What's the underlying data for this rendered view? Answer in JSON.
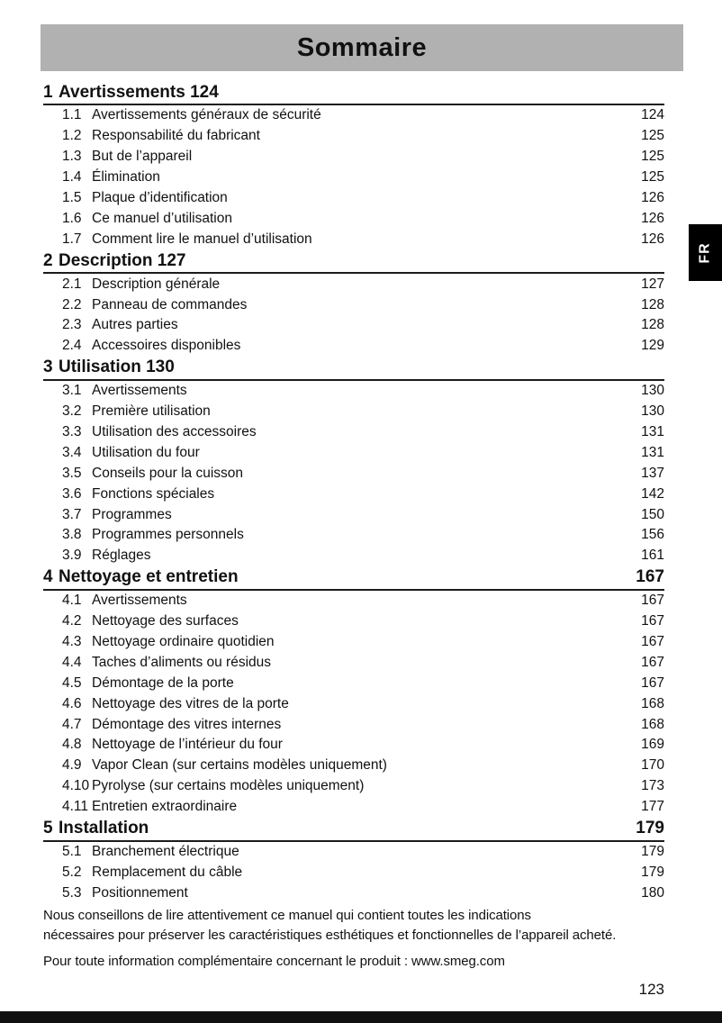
{
  "page": {
    "title": "Sommaire",
    "language_tab": "FR",
    "page_number": "123"
  },
  "toc": {
    "sections": [
      {
        "number": "1",
        "title": "Avertissements",
        "page": "124",
        "page_inline": true,
        "items": [
          {
            "number": "1.1",
            "title": "Avertissements généraux de sécurité",
            "page": "124"
          },
          {
            "number": "1.2",
            "title": "Responsabilité du fabricant",
            "page": "125"
          },
          {
            "number": "1.3",
            "title": "But de l’appareil",
            "page": "125"
          },
          {
            "number": "1.4",
            "title": "Élimination",
            "page": "125"
          },
          {
            "number": "1.5",
            "title": "Plaque d’identification",
            "page": "126"
          },
          {
            "number": "1.6",
            "title": "Ce manuel d’utilisation",
            "page": "126"
          },
          {
            "number": "1.7",
            "title": "Comment lire le manuel d’utilisation",
            "page": "126"
          }
        ]
      },
      {
        "number": "2",
        "title": "Description",
        "page": "127",
        "page_inline": true,
        "items": [
          {
            "number": "2.1",
            "title": "Description générale",
            "page": "127"
          },
          {
            "number": "2.2",
            "title": "Panneau de commandes",
            "page": "128"
          },
          {
            "number": "2.3",
            "title": "Autres parties",
            "page": "128"
          },
          {
            "number": "2.4",
            "title": "Accessoires disponibles",
            "page": "129"
          }
        ]
      },
      {
        "number": "3",
        "title": "Utilisation",
        "page": "130",
        "page_inline": true,
        "items": [
          {
            "number": "3.1",
            "title": "Avertissements",
            "page": "130"
          },
          {
            "number": "3.2",
            "title": "Première utilisation",
            "page": "130"
          },
          {
            "number": "3.3",
            "title": "Utilisation des accessoires",
            "page": "131"
          },
          {
            "number": "3.4",
            "title": "Utilisation du four",
            "page": "131"
          },
          {
            "number": "3.5",
            "title": "Conseils pour la cuisson",
            "page": "137"
          },
          {
            "number": "3.6",
            "title": "Fonctions spéciales",
            "page": "142"
          },
          {
            "number": "3.7",
            "title": "Programmes",
            "page": "150"
          },
          {
            "number": "3.8",
            "title": "Programmes personnels",
            "page": "156"
          },
          {
            "number": "3.9",
            "title": "Réglages",
            "page": "161"
          }
        ]
      },
      {
        "number": "4",
        "title": "Nettoyage et entretien",
        "page": "167",
        "page_inline": false,
        "items": [
          {
            "number": "4.1",
            "title": "Avertissements",
            "page": "167"
          },
          {
            "number": "4.2",
            "title": "Nettoyage des surfaces",
            "page": "167"
          },
          {
            "number": "4.3",
            "title": "Nettoyage ordinaire quotidien",
            "page": "167"
          },
          {
            "number": "4.4",
            "title": "Taches d’aliments ou résidus",
            "page": "167"
          },
          {
            "number": "4.5",
            "title": "Démontage de la porte",
            "page": "167"
          },
          {
            "number": "4.6",
            "title": "Nettoyage des vitres de la porte",
            "page": "168"
          },
          {
            "number": "4.7",
            "title": "Démontage des vitres internes",
            "page": "168"
          },
          {
            "number": "4.8",
            "title": "Nettoyage de l’intérieur du four",
            "page": "169"
          },
          {
            "number": "4.9",
            "title": "Vapor Clean (sur certains modèles uniquement)",
            "page": "170"
          },
          {
            "number": "4.10",
            "title": "Pyrolyse (sur certains modèles uniquement)",
            "page": "173"
          },
          {
            "number": "4.11",
            "title": "Entretien extraordinaire",
            "page": "177"
          }
        ]
      },
      {
        "number": "5",
        "title": "Installation",
        "page": "179",
        "page_inline": false,
        "items": [
          {
            "number": "5.1",
            "title": "Branchement électrique",
            "page": "179"
          },
          {
            "number": "5.2",
            "title": "Remplacement du câble",
            "page": "179"
          },
          {
            "number": "5.3",
            "title": "Positionnement",
            "page": "180"
          }
        ]
      }
    ]
  },
  "footer": {
    "paragraph1_line1": "Nous conseillons de lire attentivement ce manuel qui contient toutes les indications",
    "paragraph1_line2": "nécessaires pour préserver les caractéristiques esthétiques et fonctionnelles de l’appareil acheté.",
    "paragraph2": "Pour toute information complémentaire concernant le produit : www.smeg.com"
  },
  "colors": {
    "header_bar": "#b1b1b1",
    "text": "#111111",
    "tab_bg": "#000000",
    "tab_text": "#ffffff",
    "bottom_bar": "#111111"
  }
}
